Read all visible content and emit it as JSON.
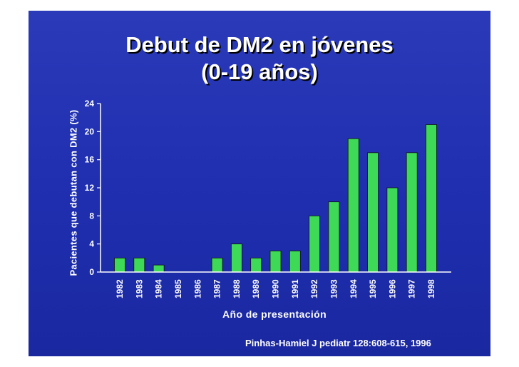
{
  "chart_data": {
    "type": "bar",
    "title": [
      "Debut de DM2 en jóvenes",
      "(0-19 años)"
    ],
    "xlabel": "Año de presentación",
    "ylabel": "Pacientes  que debutan con DM2 (%)",
    "categories": [
      "1982",
      "1983",
      "1984",
      "1985",
      "1986",
      "1987",
      "1988",
      "1989",
      "1990",
      "1991",
      "1992",
      "1993",
      "1994",
      "1995",
      "1996",
      "1997",
      "1998"
    ],
    "values": [
      2,
      2,
      1,
      0,
      0,
      2,
      4,
      2,
      3,
      3,
      8,
      10,
      19,
      17,
      12,
      17,
      21
    ],
    "yticks": [
      0,
      4,
      8,
      12,
      16,
      20,
      24
    ],
    "ylim": [
      0,
      24
    ],
    "grid": false,
    "bar_color": "#3ed957"
  },
  "source": "Pinhas-Hamiel J pediatr  128:608-615, 1996",
  "colors": {
    "background": "#1f2fb0",
    "text": "#ffffff",
    "bar": "#3ed957"
  }
}
